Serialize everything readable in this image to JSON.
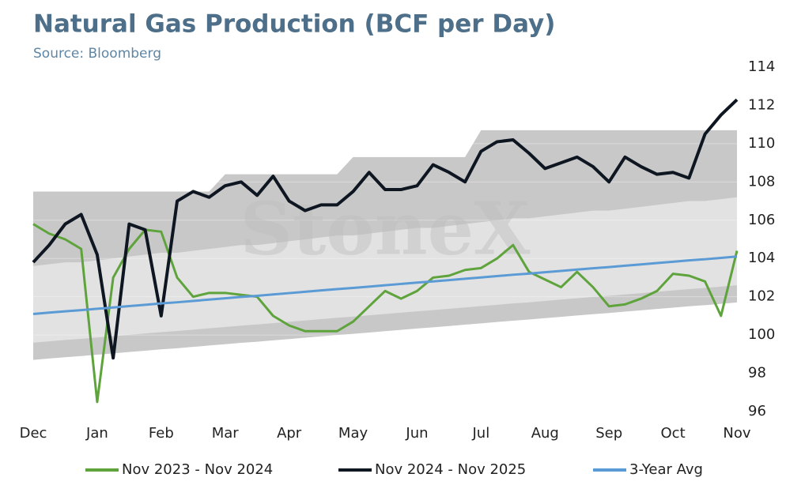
{
  "chart_data": {
    "type": "line",
    "title": "Natural Gas Production (BCF per Day)",
    "subtitle": "Source: Bloomberg",
    "watermark": "StoneX",
    "categories": [
      "Dec",
      null,
      null,
      null,
      "Jan",
      null,
      null,
      null,
      "Feb",
      null,
      null,
      null,
      "Mar",
      null,
      null,
      null,
      "Apr",
      null,
      null,
      null,
      "May",
      null,
      null,
      null,
      "Jun",
      null,
      null,
      null,
      "Jul",
      null,
      null,
      null,
      "Aug",
      null,
      null,
      null,
      "Sep",
      null,
      null,
      null,
      "Oct",
      null,
      null,
      null,
      "Nov"
    ],
    "ylim": [
      96,
      114
    ],
    "yticks": [
      96,
      98,
      100,
      102,
      104,
      106,
      108,
      110,
      112,
      114
    ],
    "grid": true,
    "legend": "bottom",
    "bands": [
      {
        "color": "#c9c8c8",
        "upper": [
          107.5,
          107.5,
          107.5,
          107.5,
          107.5,
          107.5,
          107.5,
          107.5,
          107.5,
          107.5,
          107.5,
          107.5,
          108.4,
          108.4,
          108.4,
          108.4,
          108.4,
          108.4,
          108.4,
          108.4,
          109.3,
          109.3,
          109.3,
          109.3,
          109.3,
          109.3,
          109.3,
          109.3,
          110.7,
          110.7,
          110.7,
          110.7,
          110.7,
          110.7,
          110.7,
          110.7,
          110.7,
          110.7,
          110.7,
          110.7,
          110.7,
          110.7,
          110.7,
          110.7,
          110.7
        ],
        "lower": [
          98.7,
          98.77,
          98.84,
          98.9,
          98.97,
          99.04,
          99.11,
          99.18,
          99.25,
          99.31,
          99.38,
          99.45,
          99.52,
          99.59,
          99.65,
          99.72,
          99.79,
          99.86,
          99.93,
          100.0,
          100.06,
          100.13,
          100.2,
          100.27,
          100.34,
          100.4,
          100.47,
          100.54,
          100.61,
          100.68,
          100.75,
          100.81,
          100.88,
          100.95,
          101.02,
          101.09,
          101.15,
          101.22,
          101.29,
          101.36,
          101.43,
          101.5,
          101.56,
          101.63,
          101.7
        ]
      },
      {
        "color": "#e2e2e2",
        "upper": [
          103.6,
          103.7,
          103.8,
          103.8,
          103.9,
          104.0,
          104.1,
          104.2,
          104.3,
          104.3,
          104.4,
          104.5,
          104.6,
          104.7,
          104.7,
          104.8,
          104.9,
          105.0,
          105.1,
          105.2,
          105.2,
          105.3,
          105.4,
          105.5,
          105.6,
          105.6,
          105.7,
          105.8,
          105.9,
          106.0,
          106.1,
          106.1,
          106.2,
          106.3,
          106.4,
          106.5,
          106.5,
          106.6,
          106.7,
          106.8,
          106.9,
          107.0,
          107.0,
          107.1,
          107.2
        ],
        "lower": [
          99.6,
          99.67,
          99.74,
          99.8,
          99.87,
          99.94,
          100.01,
          100.08,
          100.15,
          100.21,
          100.28,
          100.35,
          100.42,
          100.49,
          100.55,
          100.62,
          100.69,
          100.76,
          100.83,
          100.9,
          100.96,
          101.03,
          101.1,
          101.17,
          101.24,
          101.3,
          101.37,
          101.44,
          101.51,
          101.58,
          101.65,
          101.71,
          101.78,
          101.85,
          101.92,
          101.99,
          102.05,
          102.12,
          102.19,
          102.26,
          102.33,
          102.4,
          102.46,
          102.53,
          102.6
        ]
      }
    ],
    "series": [
      {
        "name": "Nov 2023 - Nov 2024",
        "color": "#5ea33c",
        "width": 3,
        "values": [
          105.8,
          105.3,
          105.0,
          104.5,
          96.5,
          103.0,
          104.5,
          105.5,
          105.4,
          103.0,
          102.0,
          102.2,
          102.2,
          102.1,
          102.0,
          101.0,
          100.5,
          100.2,
          100.2,
          100.2,
          100.7,
          101.5,
          102.3,
          101.9,
          102.3,
          103.0,
          103.1,
          103.4,
          103.5,
          104.0,
          104.7,
          103.3,
          102.9,
          102.5,
          103.3,
          102.5,
          101.5,
          101.6,
          101.9,
          102.3,
          103.2,
          103.1,
          102.8,
          101.0,
          104.4
        ]
      },
      {
        "name": "Nov 2024 - Nov 2025",
        "color": "#0e1621",
        "width": 4,
        "values": [
          103.8,
          104.7,
          105.8,
          106.3,
          104.2,
          98.8,
          105.8,
          105.5,
          101.0,
          107.0,
          107.5,
          107.2,
          107.8,
          108.0,
          107.3,
          108.3,
          107.0,
          106.5,
          106.8,
          106.8,
          107.5,
          108.5,
          107.6,
          107.6,
          107.8,
          108.9,
          108.5,
          108.0,
          109.6,
          110.1,
          110.2,
          109.5,
          108.7,
          109.0,
          109.3,
          108.8,
          108.0,
          109.3,
          108.8,
          108.4,
          108.5,
          108.2,
          110.5,
          111.5,
          112.3
        ]
      },
      {
        "name": "3-Year Avg",
        "color": "#5b9bd5",
        "width": 3,
        "values": [
          101.1,
          101.17,
          101.24,
          101.3,
          101.37,
          101.44,
          101.51,
          101.58,
          101.65,
          101.71,
          101.78,
          101.85,
          101.92,
          101.99,
          102.05,
          102.12,
          102.19,
          102.26,
          102.33,
          102.4,
          102.46,
          102.53,
          102.6,
          102.67,
          102.74,
          102.8,
          102.87,
          102.94,
          103.01,
          103.08,
          103.15,
          103.21,
          103.28,
          103.35,
          103.42,
          103.49,
          103.55,
          103.62,
          103.69,
          103.76,
          103.83,
          103.9,
          103.96,
          104.03,
          104.1
        ]
      }
    ]
  }
}
